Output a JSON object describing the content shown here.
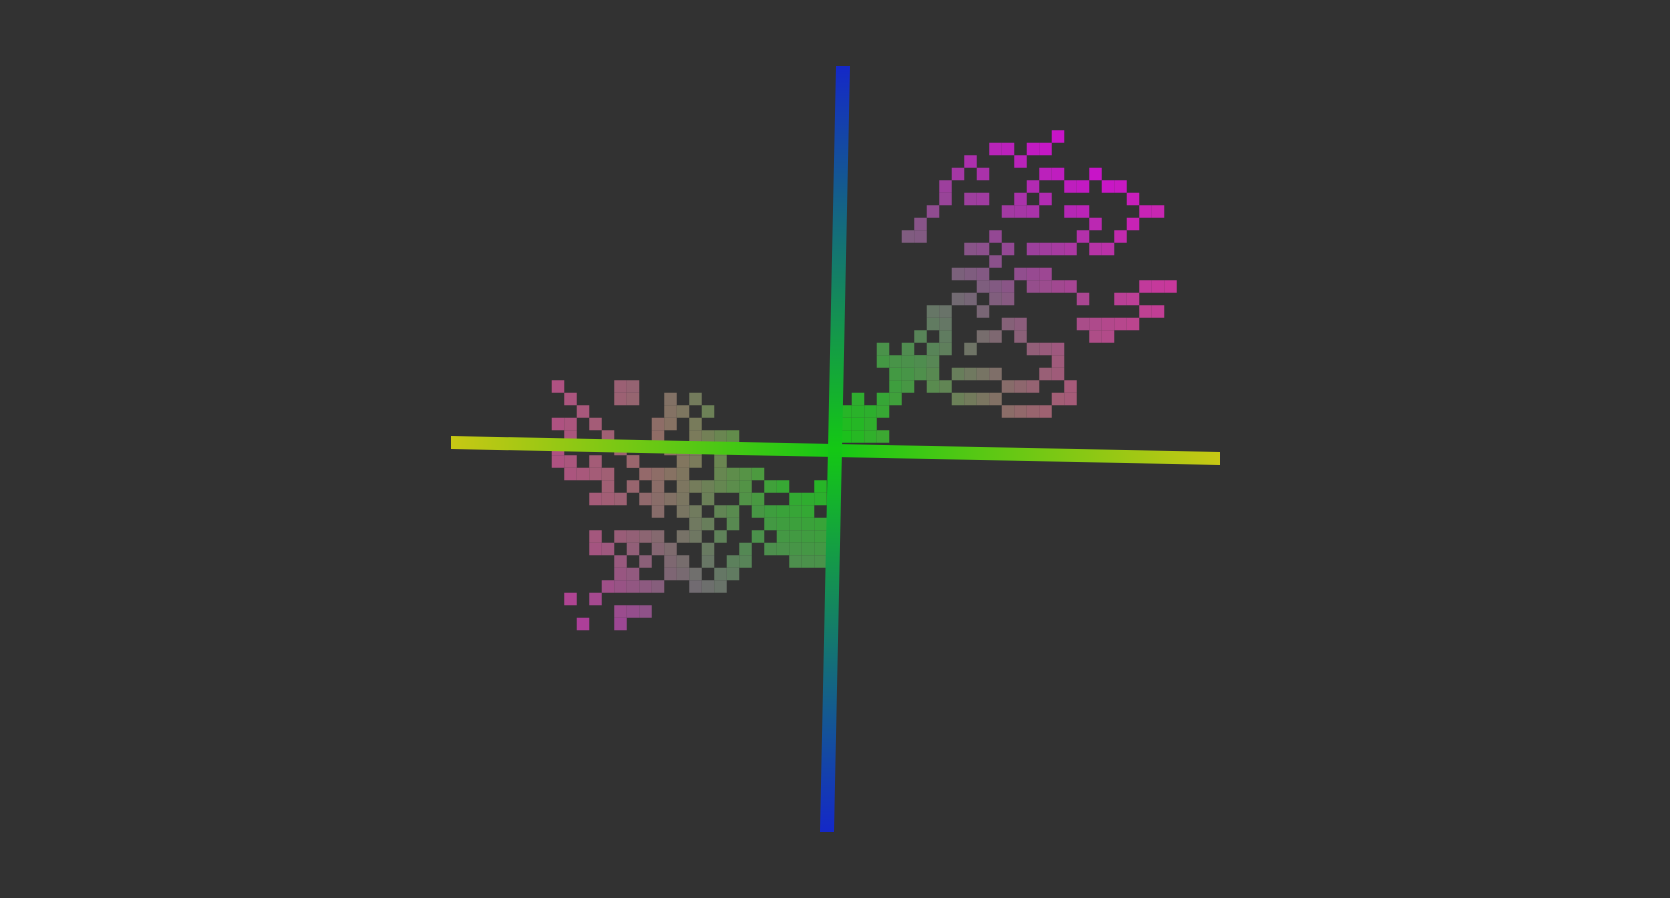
{
  "viewport": {
    "background": "#323232",
    "scene_kind": "3d-voxel-point-cloud",
    "palette": [
      "#c8c814",
      "#14c814",
      "#1428c8",
      "#c814c8",
      "#c86464"
    ]
  }
}
